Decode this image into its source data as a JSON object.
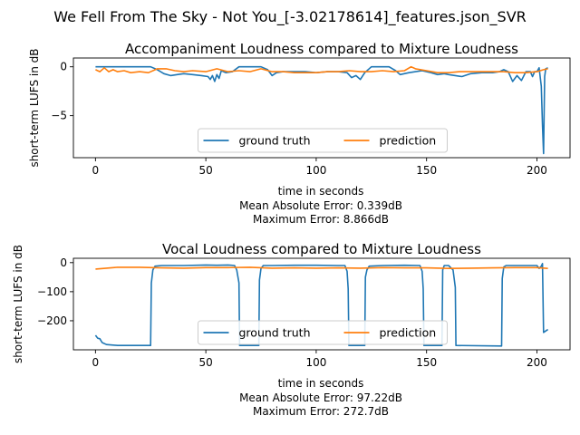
{
  "figure": {
    "suptitle": "We Fell From The Sky - Not You_[-3.02178614]_features.json_SVR"
  },
  "chart_data": [
    {
      "type": "line",
      "title": "Accompaniment Loudness compared to Mixture Loudness",
      "xlabel": "time in seconds",
      "ylabel": "short-term LUFS in dB",
      "xlim": [
        -10,
        215
      ],
      "ylim": [
        -9.3,
        0.9
      ],
      "xticks": [
        0,
        50,
        100,
        150,
        200
      ],
      "yticks": [
        0,
        -5
      ],
      "grid": false,
      "legend": {
        "placement": "lower center",
        "ncol": 2
      },
      "summary": [
        "Mean Absolute Error: 0.339dB",
        "Maximum Error: 8.866dB"
      ],
      "series": [
        {
          "name": "ground truth",
          "color": "#1f77b4",
          "x": [
            0,
            5,
            10,
            15,
            20,
            25,
            28,
            31,
            34,
            37,
            40,
            44,
            48,
            51,
            52,
            53,
            54,
            55,
            56,
            57,
            59,
            62,
            65,
            75,
            78,
            80,
            82,
            85,
            90,
            95,
            100,
            105,
            110,
            114,
            116,
            118,
            120,
            122,
            125,
            127,
            130,
            133,
            136,
            138,
            142,
            145,
            148,
            152,
            155,
            158,
            160,
            163,
            166,
            170,
            175,
            180,
            183,
            185,
            187,
            189,
            191,
            193,
            195,
            197,
            198,
            199,
            200,
            201,
            202,
            202.5,
            203,
            203.5,
            204,
            205
          ],
          "y": [
            0,
            0,
            0,
            0,
            0,
            0,
            -0.3,
            -0.7,
            -0.9,
            -0.8,
            -0.7,
            -0.8,
            -0.9,
            -1.0,
            -1.3,
            -0.9,
            -1.5,
            -0.8,
            -1.2,
            -0.4,
            -0.6,
            -0.5,
            0,
            0,
            -0.3,
            -0.9,
            -0.6,
            -0.5,
            -0.5,
            -0.5,
            -0.6,
            -0.5,
            -0.5,
            -0.6,
            -1.1,
            -0.9,
            -1.3,
            -0.6,
            0,
            0,
            0,
            0,
            -0.4,
            -0.8,
            -0.6,
            -0.5,
            -0.4,
            -0.6,
            -0.8,
            -0.7,
            -0.8,
            -0.9,
            -1.0,
            -0.7,
            -0.6,
            -0.6,
            -0.5,
            -0.3,
            -0.5,
            -1.5,
            -0.9,
            -1.4,
            -0.5,
            -0.5,
            -1.0,
            -0.5,
            -0.5,
            -0.1,
            -2.0,
            -6.0,
            -8.87,
            -1.0,
            -0.2,
            -0.1
          ]
        },
        {
          "name": "prediction",
          "color": "#ff7f0e",
          "x": [
            0,
            2,
            4,
            6,
            8,
            10,
            13,
            16,
            20,
            24,
            28,
            32,
            36,
            40,
            44,
            50,
            55,
            60,
            65,
            70,
            75,
            80,
            85,
            90,
            95,
            100,
            105,
            110,
            115,
            120,
            125,
            130,
            135,
            140,
            143,
            145,
            150,
            155,
            160,
            165,
            170,
            175,
            180,
            185,
            190,
            195,
            200,
            203,
            205
          ],
          "y": [
            -0.3,
            -0.5,
            -0.1,
            -0.5,
            -0.3,
            -0.5,
            -0.4,
            -0.6,
            -0.5,
            -0.6,
            -0.2,
            -0.2,
            -0.4,
            -0.5,
            -0.4,
            -0.5,
            -0.2,
            -0.5,
            -0.4,
            -0.5,
            -0.2,
            -0.5,
            -0.5,
            -0.6,
            -0.6,
            -0.6,
            -0.5,
            -0.5,
            -0.4,
            -0.5,
            -0.5,
            -0.4,
            -0.5,
            -0.4,
            0.0,
            -0.2,
            -0.4,
            -0.6,
            -0.6,
            -0.5,
            -0.5,
            -0.5,
            -0.5,
            -0.5,
            -0.6,
            -0.6,
            -0.5,
            -0.3,
            -0.2
          ]
        }
      ]
    },
    {
      "type": "line",
      "title": "Vocal Loudness compared to Mixture Loudness",
      "xlabel": "time in seconds",
      "ylabel": "short-term LUFS in dB",
      "xlim": [
        -10,
        215
      ],
      "ylim": [
        -300,
        15
      ],
      "xticks": [
        0,
        50,
        100,
        150,
        200
      ],
      "yticks": [
        0,
        -100,
        -200
      ],
      "grid": false,
      "legend": {
        "placement": "lower center",
        "ncol": 2
      },
      "summary": [
        "Mean Absolute Error: 97.22dB",
        "Maximum Error: 272.7dB"
      ],
      "series": [
        {
          "name": "ground truth",
          "color": "#1f77b4",
          "x": [
            0,
            1,
            2,
            3,
            5,
            10,
            20,
            25,
            25.3,
            26,
            27,
            30,
            40,
            50,
            55,
            60,
            63,
            64,
            65,
            65.3,
            74,
            74.3,
            75,
            76,
            80,
            90,
            100,
            110,
            113,
            114,
            114.5,
            114.8,
            122,
            122.3,
            123,
            124,
            130,
            140,
            147,
            148,
            148.5,
            148.8,
            157,
            157.3,
            158,
            160,
            162,
            163,
            163.3,
            184,
            184.3,
            185,
            186,
            190,
            200,
            201,
            202,
            202.5,
            203,
            204,
            205
          ],
          "y": [
            -250,
            -260,
            -262,
            -275,
            -282,
            -285,
            -285,
            -285,
            -70,
            -25,
            -12,
            -10,
            -10,
            -8,
            -9,
            -8,
            -10,
            -25,
            -70,
            -285,
            -285,
            -60,
            -20,
            -10,
            -10,
            -9,
            -9,
            -10,
            -10,
            -30,
            -90,
            -285,
            -285,
            -50,
            -25,
            -12,
            -10,
            -9,
            -10,
            -30,
            -90,
            -285,
            -285,
            -25,
            -10,
            -10,
            -25,
            -85,
            -285,
            -287,
            -55,
            -15,
            -10,
            -10,
            -10,
            -20,
            -12,
            -3,
            -240,
            -235,
            -230
          ]
        },
        {
          "name": "prediction",
          "color": "#ff7f0e",
          "x": [
            0,
            5,
            10,
            20,
            30,
            40,
            50,
            60,
            70,
            80,
            90,
            100,
            110,
            120,
            130,
            140,
            150,
            160,
            170,
            180,
            190,
            200,
            205
          ],
          "y": [
            -22,
            -19,
            -16,
            -16,
            -18,
            -19,
            -17,
            -17,
            -16,
            -19,
            -18,
            -19,
            -18,
            -19,
            -17,
            -18,
            -18,
            -20,
            -19,
            -18,
            -17,
            -17,
            -20
          ]
        }
      ]
    }
  ]
}
